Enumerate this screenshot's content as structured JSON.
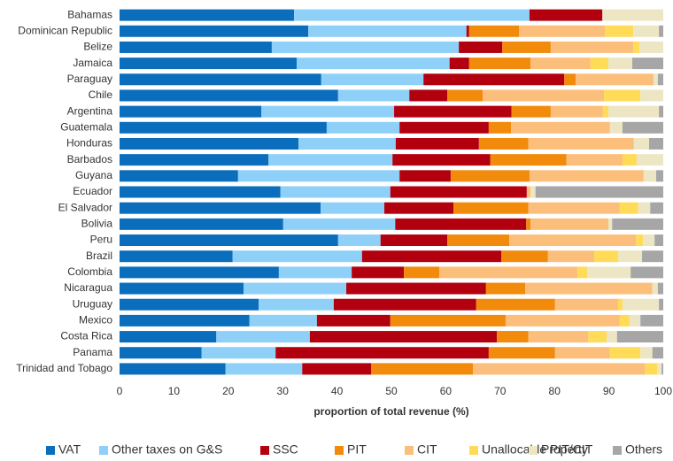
{
  "chart_data": {
    "type": "stacked_barh",
    "xlabel": "proportion of total revenue (%)",
    "categories": [
      "Bahamas",
      "Dominican Republic",
      "Belize",
      "Jamaica",
      "Paraguay",
      "Chile",
      "Argentina",
      "Guatemala",
      "Honduras",
      "Barbados",
      "Guyana",
      "Ecuador",
      "El Salvador",
      "Bolivia",
      "Peru",
      "Brazil",
      "Colombia",
      "Nicaragua",
      "Uruguay",
      "Mexico",
      "Costa Rica",
      "Panama",
      "Trinidad and Tobago"
    ],
    "series": [
      {
        "name": "VAT",
        "color": "#0a6ebd",
        "values": [
          32.1,
          34.7,
          28.0,
          32.6,
          37.1,
          40.2,
          26.1,
          38.1,
          32.9,
          27.4,
          21.8,
          29.6,
          37.0,
          30.1,
          40.2,
          20.8,
          29.3,
          22.8,
          25.6,
          23.9,
          17.8,
          15.1,
          19.5
        ]
      },
      {
        "name": "Other taxes on G&S",
        "color": "#8fd0f8",
        "values": [
          43.3,
          29.1,
          34.4,
          28.1,
          18.8,
          13.1,
          24.4,
          13.4,
          17.9,
          22.8,
          29.7,
          20.2,
          11.7,
          20.6,
          7.8,
          23.8,
          13.4,
          18.9,
          13.8,
          12.4,
          17.2,
          13.6,
          14.1
        ]
      },
      {
        "name": "SSC",
        "color": "#b2000f",
        "values": [
          13.4,
          0.5,
          8.0,
          3.6,
          25.9,
          7.0,
          21.6,
          16.4,
          15.3,
          18.0,
          9.4,
          25.1,
          12.7,
          24.1,
          12.3,
          25.6,
          9.6,
          25.7,
          26.2,
          13.5,
          34.4,
          39.2,
          12.7
        ]
      },
      {
        "name": "PIT",
        "color": "#f28a0c",
        "values": [
          0,
          9.2,
          8.9,
          11.3,
          2.1,
          6.5,
          7.2,
          4.1,
          9.1,
          14.0,
          14.5,
          0,
          13.8,
          0.8,
          11.4,
          8.6,
          6.5,
          7.2,
          14.5,
          21.2,
          5.8,
          12.2,
          18.7
        ]
      },
      {
        "name": "CIT",
        "color": "#fcbf7b",
        "values": [
          0,
          15.8,
          15.2,
          11.0,
          14.3,
          22.3,
          9.6,
          18.2,
          19.4,
          10.3,
          21.0,
          0.7,
          16.8,
          14.3,
          23.3,
          8.5,
          25.4,
          23.4,
          11.6,
          21.0,
          11.0,
          10.1,
          31.7
        ]
      },
      {
        "name": "Unallocable PIT/CIT",
        "color": "#ffdb58",
        "values": [
          0,
          5.2,
          1.1,
          3.3,
          0,
          6.7,
          1.0,
          0,
          0,
          2.6,
          0,
          0,
          3.4,
          0,
          1.3,
          4.4,
          1.8,
          0,
          0.8,
          1.8,
          3.4,
          5.6,
          2.2
        ]
      },
      {
        "name": "Property",
        "color": "#ede6c4",
        "values": [
          11.2,
          4.7,
          4.4,
          4.4,
          0.8,
          4.2,
          9.3,
          2.3,
          2.8,
          4.9,
          2.3,
          0.9,
          2.2,
          0.7,
          2.1,
          4.4,
          8.0,
          1.0,
          6.7,
          2.0,
          1.9,
          2.2,
          0.8
        ]
      },
      {
        "name": "Others",
        "color": "#a6a6a6",
        "values": [
          0,
          0.8,
          0,
          5.7,
          1.0,
          0,
          0.8,
          7.5,
          2.6,
          0,
          1.3,
          23.5,
          2.4,
          9.4,
          1.6,
          3.9,
          6.0,
          1.0,
          0.8,
          4.2,
          8.5,
          2.0,
          0.3
        ]
      }
    ],
    "xlim": [
      0,
      100
    ],
    "xticks": [
      0,
      10,
      20,
      30,
      40,
      50,
      60,
      70,
      80,
      90,
      100
    ],
    "grid": false,
    "legend": "bottom"
  }
}
